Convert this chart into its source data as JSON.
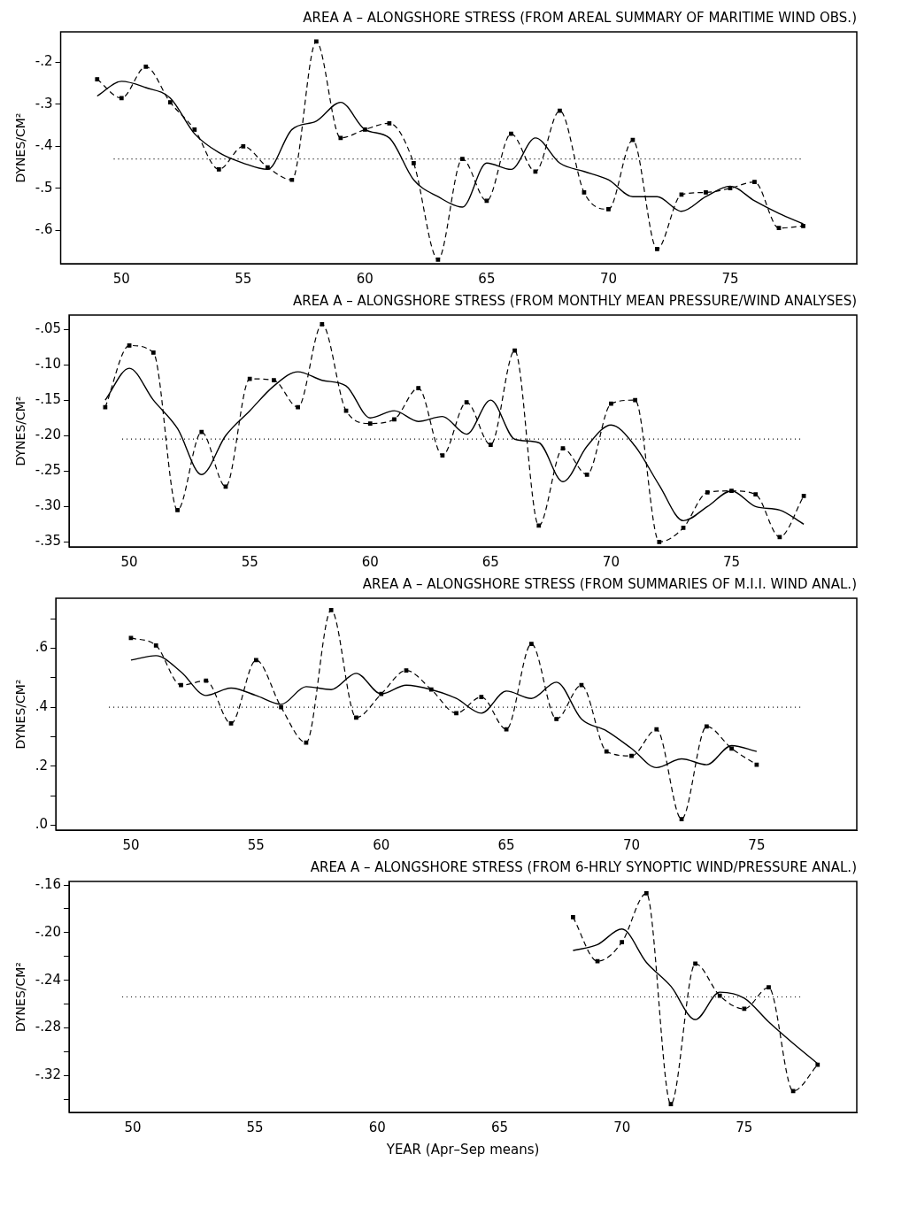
{
  "chart_data": [
    {
      "type": "line",
      "title": "AREA A – ALONGSHORE STRESS (FROM AREAL SUMMARY OF MARITIME WIND OBS.)",
      "ylabel": "DYNES/CM²",
      "xlim": [
        47.5,
        80.2
      ],
      "xticks": [
        50,
        55,
        60,
        65,
        70,
        75
      ],
      "ylim": [
        -0.68,
        -0.127
      ],
      "yticks": [
        {
          "value": -0.2,
          "label": "-.2"
        },
        {
          "value": -0.3,
          "label": "-.3"
        },
        {
          "value": -0.4,
          "label": "-.4"
        },
        {
          "value": -0.5,
          "label": "-.5"
        },
        {
          "value": -0.6,
          "label": "-.6"
        }
      ],
      "grid": false,
      "legend": false,
      "series": [
        {
          "type": "line",
          "color": "#000000",
          "marker": "square",
          "line_style": "dashed",
          "x": [
            49,
            50,
            51,
            52,
            53,
            54,
            55,
            56,
            57,
            58,
            59,
            60,
            61,
            62,
            63,
            64,
            65,
            66,
            67,
            68,
            69,
            70,
            71,
            72,
            73,
            74,
            75,
            76,
            77,
            78
          ],
          "values": [
            -0.24,
            -0.285,
            -0.21,
            -0.295,
            -0.36,
            -0.455,
            -0.4,
            -0.45,
            -0.48,
            -0.15,
            -0.38,
            -0.36,
            -0.345,
            -0.44,
            -0.67,
            -0.43,
            -0.53,
            -0.37,
            -0.46,
            -0.315,
            -0.51,
            -0.55,
            -0.385,
            -0.645,
            -0.515,
            -0.51,
            -0.5,
            -0.485,
            -0.595,
            -0.59
          ]
        },
        {
          "type": "line",
          "color": "#000000",
          "marker": "none",
          "line_style": "solid",
          "x": [
            49,
            50,
            51,
            52,
            53,
            54,
            55,
            56,
            57,
            58,
            59,
            60,
            61,
            62,
            63,
            64,
            65,
            66,
            67,
            68,
            69,
            70,
            71,
            72,
            73,
            74,
            75,
            76,
            77,
            78
          ],
          "values": [
            -0.28,
            -0.245,
            -0.26,
            -0.285,
            -0.37,
            -0.415,
            -0.44,
            -0.455,
            -0.36,
            -0.34,
            -0.295,
            -0.36,
            -0.38,
            -0.48,
            -0.52,
            -0.545,
            -0.44,
            -0.455,
            -0.38,
            -0.44,
            -0.46,
            -0.48,
            -0.52,
            -0.52,
            -0.555,
            -0.52,
            -0.495,
            -0.53,
            -0.56,
            -0.585
          ]
        }
      ],
      "ref_lines": [
        {
          "axis": "y",
          "value": -0.43,
          "line_style": "dotted",
          "color": "#000000"
        }
      ]
    },
    {
      "type": "line",
      "title": "AREA A – ALONGSHORE STRESS (FROM MONTHLY MEAN PRESSURE/WIND ANALYSES)",
      "ylabel": "DYNES/CM²",
      "xlim": [
        47.5,
        80.2
      ],
      "xticks": [
        50,
        55,
        60,
        65,
        70,
        75
      ],
      "ylim": [
        -0.357,
        -0.03
      ],
      "yticks": [
        {
          "value": -0.05,
          "label": "-.05"
        },
        {
          "value": -0.1,
          "label": "-.10"
        },
        {
          "value": -0.15,
          "label": "-.15"
        },
        {
          "value": -0.2,
          "label": "-.20"
        },
        {
          "value": -0.25,
          "label": "-.25"
        },
        {
          "value": -0.3,
          "label": "-.30"
        },
        {
          "value": -0.35,
          "label": "-.35"
        }
      ],
      "grid": false,
      "legend": false,
      "series": [
        {
          "type": "line",
          "color": "#000000",
          "marker": "square",
          "line_style": "dashed",
          "x": [
            49,
            50,
            51,
            52,
            53,
            54,
            55,
            56,
            57,
            58,
            59,
            60,
            61,
            62,
            63,
            64,
            65,
            66,
            67,
            68,
            69,
            70,
            71,
            72,
            73,
            74,
            75,
            76,
            77,
            78
          ],
          "values": [
            -0.16,
            -0.073,
            -0.083,
            -0.305,
            -0.195,
            -0.272,
            -0.12,
            -0.122,
            -0.16,
            -0.043,
            -0.165,
            -0.183,
            -0.177,
            -0.133,
            -0.228,
            -0.153,
            -0.213,
            -0.08,
            -0.327,
            -0.218,
            -0.255,
            -0.155,
            -0.15,
            -0.35,
            -0.33,
            -0.28,
            -0.278,
            -0.283,
            -0.343,
            -0.285
          ]
        },
        {
          "type": "line",
          "color": "#000000",
          "marker": "none",
          "line_style": "solid",
          "x": [
            49,
            50,
            51,
            52,
            53,
            54,
            55,
            56,
            57,
            58,
            59,
            60,
            61,
            62,
            63,
            64,
            65,
            66,
            67,
            68,
            69,
            70,
            71,
            72,
            73,
            74,
            75,
            76,
            77,
            78
          ],
          "values": [
            -0.15,
            -0.105,
            -0.15,
            -0.19,
            -0.255,
            -0.2,
            -0.165,
            -0.13,
            -0.11,
            -0.122,
            -0.13,
            -0.175,
            -0.165,
            -0.18,
            -0.173,
            -0.198,
            -0.15,
            -0.205,
            -0.21,
            -0.265,
            -0.215,
            -0.185,
            -0.215,
            -0.27,
            -0.32,
            -0.3,
            -0.278,
            -0.3,
            -0.305,
            -0.325
          ]
        }
      ],
      "ref_lines": [
        {
          "axis": "y",
          "value": -0.205,
          "line_style": "dotted",
          "color": "#000000"
        }
      ]
    },
    {
      "type": "line",
      "title": "AREA A – ALONGSHORE STRESS (FROM SUMMARIES OF M.I.I. WIND ANAL.)",
      "ylabel": "DYNES/CM²",
      "xlim": [
        47,
        79
      ],
      "xticks": [
        50,
        55,
        60,
        65,
        70,
        75
      ],
      "ylim": [
        -0.017,
        0.77
      ],
      "yticks": [
        {
          "value": 0,
          "label": ".0"
        },
        {
          "value": 0.1,
          "label": null
        },
        {
          "value": 0.2,
          "label": ".2"
        },
        {
          "value": 0.3,
          "label": null
        },
        {
          "value": 0.4,
          "label": ".4"
        },
        {
          "value": 0.5,
          "label": null
        },
        {
          "value": 0.6,
          "label": ".6"
        },
        {
          "value": 0.7,
          "label": null
        }
      ],
      "grid": false,
      "legend": false,
      "series": [
        {
          "type": "line",
          "color": "#000000",
          "marker": "square",
          "line_style": "dashed",
          "x": [
            50,
            51,
            52,
            53,
            54,
            55,
            56,
            57,
            58,
            59,
            60,
            61,
            62,
            63,
            64,
            65,
            66,
            67,
            68,
            69,
            70,
            71,
            72,
            73,
            74,
            75
          ],
          "values": [
            0.635,
            0.61,
            0.475,
            0.49,
            0.345,
            0.56,
            0.4,
            0.28,
            0.73,
            0.365,
            0.445,
            0.525,
            0.46,
            0.38,
            0.435,
            0.325,
            0.615,
            0.36,
            0.475,
            0.25,
            0.235,
            0.325,
            0.02,
            0.335,
            0.26,
            0.205
          ]
        },
        {
          "type": "line",
          "color": "#000000",
          "marker": "none",
          "line_style": "solid",
          "x": [
            50,
            51,
            52,
            53,
            54,
            55,
            56,
            57,
            58,
            59,
            60,
            61,
            62,
            63,
            64,
            65,
            66,
            67,
            68,
            69,
            70,
            71,
            72,
            73,
            74,
            75
          ],
          "values": [
            0.56,
            0.575,
            0.52,
            0.44,
            0.465,
            0.44,
            0.41,
            0.47,
            0.46,
            0.515,
            0.445,
            0.475,
            0.46,
            0.43,
            0.38,
            0.455,
            0.43,
            0.485,
            0.36,
            0.32,
            0.26,
            0.195,
            0.225,
            0.205,
            0.27,
            0.25
          ]
        }
      ],
      "ref_lines": [
        {
          "axis": "y",
          "value": 0.4,
          "line_style": "dotted",
          "color": "#000000"
        }
      ]
    },
    {
      "type": "line",
      "title": "AREA A – ALONGSHORE STRESS (FROM 6-HRLY SYNOPTIC WIND/PRESSURE ANAL.)",
      "xlabel": "YEAR (Apr–Sep means)",
      "ylabel": "DYNES/CM²",
      "xlim": [
        47.4,
        79.6
      ],
      "xticks": [
        50,
        55,
        60,
        65,
        70,
        75
      ],
      "ylim": [
        -0.351,
        -0.157
      ],
      "yticks": [
        {
          "value": -0.16,
          "label": "-.16"
        },
        {
          "value": -0.18,
          "label": null
        },
        {
          "value": -0.2,
          "label": "-.20"
        },
        {
          "value": -0.22,
          "label": null
        },
        {
          "value": -0.24,
          "label": "-.24"
        },
        {
          "value": -0.26,
          "label": null
        },
        {
          "value": -0.28,
          "label": "-.28"
        },
        {
          "value": -0.3,
          "label": null
        },
        {
          "value": -0.32,
          "label": "-.32"
        },
        {
          "value": -0.34,
          "label": null
        }
      ],
      "grid": false,
      "legend": false,
      "series": [
        {
          "type": "line",
          "color": "#000000",
          "marker": "square",
          "line_style": "dashed",
          "x": [
            68,
            69,
            70,
            71,
            72,
            73,
            74,
            75,
            76,
            77,
            78
          ],
          "values": [
            -0.187,
            -0.224,
            -0.208,
            -0.167,
            -0.344,
            -0.226,
            -0.253,
            -0.264,
            -0.246,
            -0.333,
            -0.311
          ]
        },
        {
          "type": "line",
          "color": "#000000",
          "marker": "none",
          "line_style": "solid",
          "x": [
            68,
            69,
            70,
            71,
            72,
            73,
            74,
            75,
            76,
            77,
            78
          ],
          "values": [
            -0.215,
            -0.21,
            -0.197,
            -0.225,
            -0.245,
            -0.273,
            -0.25,
            -0.255,
            -0.275,
            -0.293,
            -0.31
          ]
        }
      ],
      "ref_lines": [
        {
          "axis": "y",
          "value": -0.254,
          "line_style": "dotted",
          "color": "#000000"
        }
      ]
    }
  ]
}
